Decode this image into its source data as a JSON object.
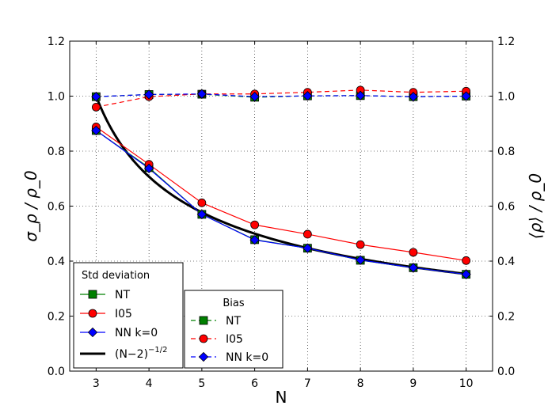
{
  "chart_data": {
    "type": "line",
    "x": [
      3,
      4,
      5,
      6,
      7,
      8,
      9,
      10
    ],
    "xlabel": "N",
    "ylabel_left": "σ_ρ / ρ_0",
    "ylabel_right": "⟨ρ⟩ / ρ_0",
    "xlim": [
      2.5,
      10.5
    ],
    "ylim_left": [
      0.0,
      1.2
    ],
    "ylim_right": [
      0.0,
      1.2
    ],
    "xticks": [
      "3",
      "4",
      "5",
      "6",
      "7",
      "8",
      "9",
      "10"
    ],
    "yticks": [
      "0.0",
      "0.2",
      "0.4",
      "0.6",
      "0.8",
      "1.0",
      "1.2"
    ],
    "grid": true,
    "std_series": [
      {
        "name": "NT",
        "color": "#008000",
        "marker": "square",
        "values": [
          0.875,
          0.74,
          0.57,
          0.478,
          0.447,
          0.403,
          0.376,
          0.352
        ]
      },
      {
        "name": "I05",
        "color": "#ff0000",
        "marker": "circle",
        "values": [
          0.888,
          0.752,
          0.612,
          0.532,
          0.498,
          0.46,
          0.432,
          0.402
        ]
      },
      {
        "name": "NN k=0",
        "color": "#0000ff",
        "marker": "diamond",
        "values": [
          0.875,
          0.737,
          0.57,
          0.477,
          0.447,
          0.404,
          0.376,
          0.352
        ]
      }
    ],
    "theory_curve": {
      "name": "(N−2)",
      "exponent": "−1/2",
      "color": "#000000"
    },
    "bias_series": [
      {
        "name": "NT",
        "color": "#008000",
        "marker": "square",
        "values": [
          0.998,
          1.006,
          1.007,
          0.996,
          1.001,
          1.002,
          0.998,
          1.0
        ]
      },
      {
        "name": "I05",
        "color": "#ff0000",
        "marker": "circle",
        "values": [
          0.96,
          0.998,
          1.008,
          1.008,
          1.014,
          1.022,
          1.014,
          1.018
        ]
      },
      {
        "name": "NN k=0",
        "color": "#0000ff",
        "marker": "diamond",
        "values": [
          0.998,
          1.006,
          1.008,
          0.998,
          1.001,
          1.002,
          0.998,
          1.0
        ]
      }
    ],
    "legend_std": {
      "title": "Std deviation",
      "placement": "lower-left"
    },
    "legend_bias": {
      "title": "Bias",
      "placement": "lower-center"
    }
  }
}
